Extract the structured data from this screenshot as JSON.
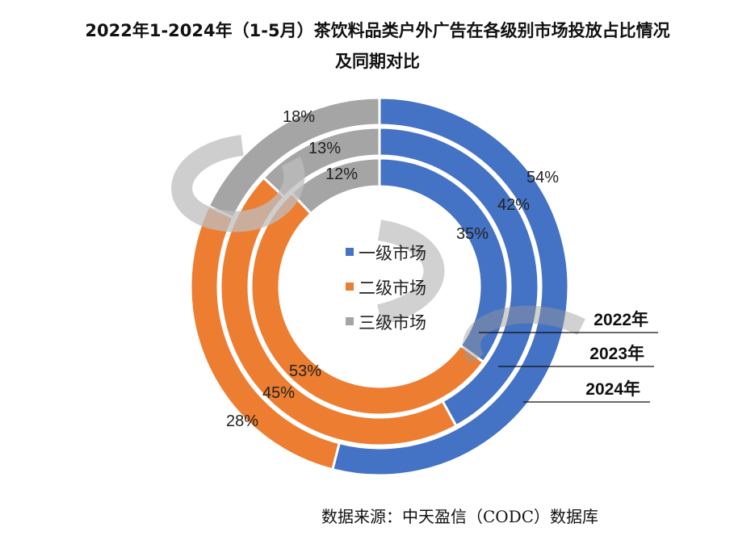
{
  "chart_data": {
    "type": "donut",
    "title": "2022年1-2024年（1-5月）茶饮料品类户外广告在各级别市场投放占比情况",
    "title_line2": "及同期对比",
    "legend": [
      "一级市场",
      "二级市场",
      "三级市场"
    ],
    "legend_placement": "center",
    "colors": [
      "#4472C4",
      "#ED7D31",
      "#A5A5A5"
    ],
    "rings_inner_to_outer": [
      {
        "year": "2022年",
        "values": [
          35,
          53,
          12
        ],
        "labels": [
          "35%",
          "53%",
          "12%"
        ]
      },
      {
        "year": "2023年",
        "values": [
          42,
          45,
          13
        ],
        "labels": [
          "42%",
          "45%",
          "13%"
        ]
      },
      {
        "year": "2024年",
        "values": [
          54,
          28,
          18
        ],
        "labels": [
          "54%",
          "28%",
          "18%"
        ]
      }
    ]
  },
  "source": "数据来源：中天盈信（CODC）数据库"
}
